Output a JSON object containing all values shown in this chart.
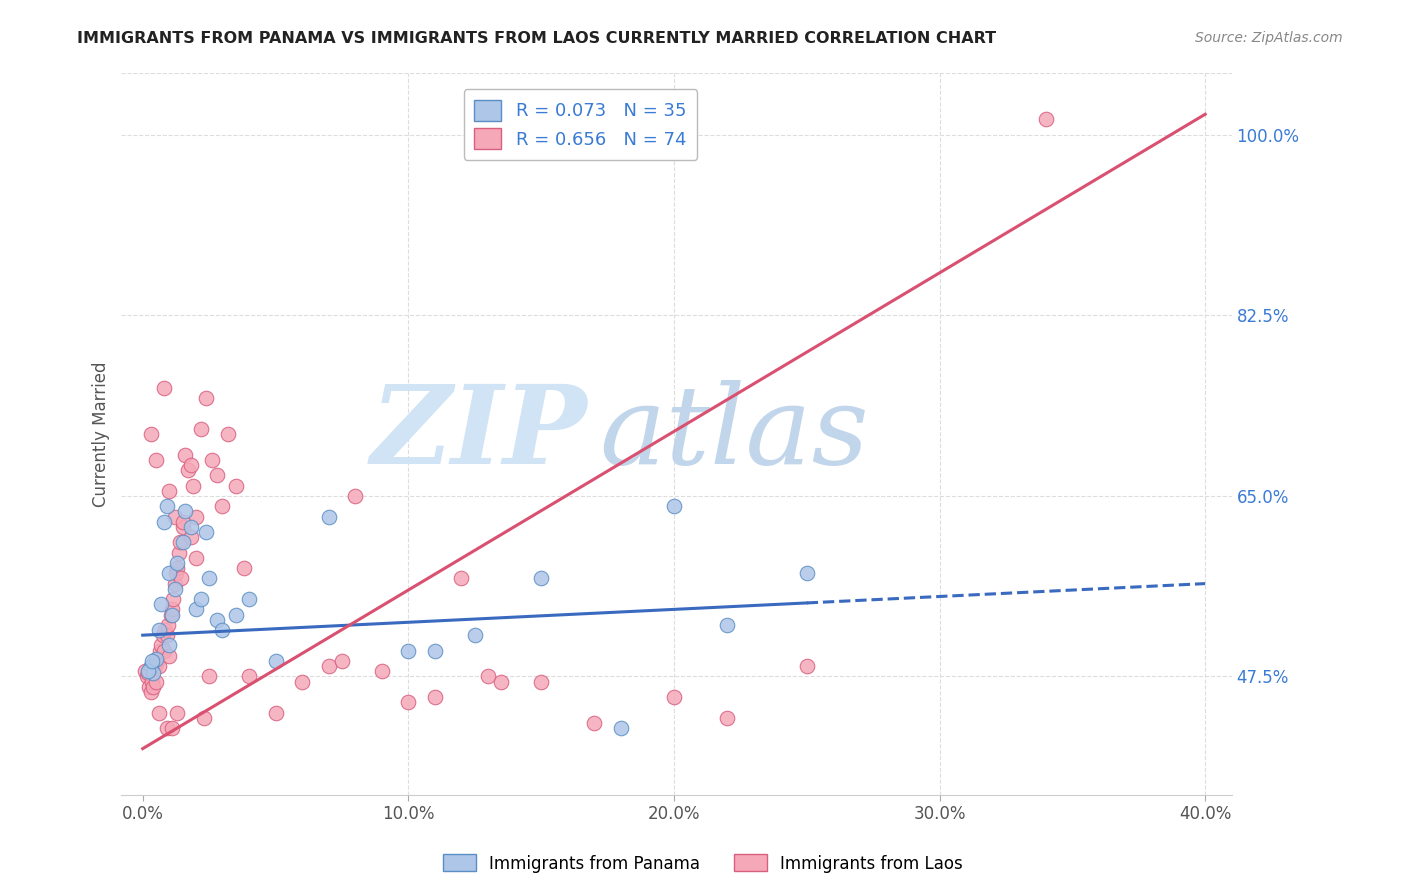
{
  "title": "IMMIGRANTS FROM PANAMA VS IMMIGRANTS FROM LAOS CURRENTLY MARRIED CORRELATION CHART",
  "source": "Source: ZipAtlas.com",
  "ylabel": "Currently Married",
  "x_tick_labels": [
    "0.0%",
    "10.0%",
    "20.0%",
    "30.0%",
    "40.0%"
  ],
  "x_tick_values": [
    0.0,
    10.0,
    20.0,
    30.0,
    40.0
  ],
  "y_tick_labels": [
    "47.5%",
    "65.0%",
    "82.5%",
    "100.0%"
  ],
  "y_tick_values": [
    47.5,
    65.0,
    82.5,
    100.0
  ],
  "xlim": [
    -0.8,
    41.0
  ],
  "ylim": [
    36.0,
    106.0
  ],
  "panama_color": "#aec6e8",
  "laos_color": "#f5a8b8",
  "panama_edge": "#5b8ec4",
  "laos_edge": "#d95f7f",
  "regression_blue": "#3a6abf",
  "regression_pink": "#d95070",
  "watermark_zip": "ZIP",
  "watermark_atlas": "atlas",
  "watermark_color": "#d0e4f5",
  "legend_r_panama": "R = 0.073",
  "legend_n_panama": "N = 35",
  "legend_r_laos": "R = 0.656",
  "legend_n_laos": "N = 74",
  "panama_regression_x0": 0.0,
  "panama_regression_y0": 51.5,
  "panama_regression_x1": 40.0,
  "panama_regression_y1": 56.5,
  "panama_solid_end": 25.0,
  "laos_regression_x0": 0.0,
  "laos_regression_y0": 40.5,
  "laos_regression_x1": 40.0,
  "laos_regression_y1": 102.0,
  "panama_x": [
    0.3,
    0.4,
    0.5,
    0.6,
    0.7,
    0.8,
    0.9,
    1.0,
    1.0,
    1.1,
    1.2,
    1.3,
    1.5,
    1.6,
    1.8,
    2.0,
    2.2,
    2.4,
    2.5,
    2.8,
    3.0,
    3.5,
    4.0,
    5.0,
    7.0,
    10.0,
    11.0,
    12.5,
    15.0,
    18.0,
    20.0,
    22.0,
    25.0,
    0.2,
    0.35
  ],
  "panama_y": [
    48.5,
    47.8,
    49.2,
    52.0,
    54.5,
    62.5,
    64.0,
    50.5,
    57.5,
    53.5,
    56.0,
    58.5,
    60.5,
    63.5,
    62.0,
    54.0,
    55.0,
    61.5,
    57.0,
    53.0,
    52.0,
    53.5,
    55.0,
    49.0,
    63.0,
    50.0,
    50.0,
    51.5,
    57.0,
    42.5,
    64.0,
    52.5,
    57.5,
    48.0,
    49.0
  ],
  "laos_x": [
    0.1,
    0.15,
    0.2,
    0.25,
    0.3,
    0.35,
    0.4,
    0.45,
    0.5,
    0.55,
    0.6,
    0.65,
    0.7,
    0.75,
    0.8,
    0.85,
    0.9,
    0.95,
    1.0,
    1.05,
    1.1,
    1.15,
    1.2,
    1.25,
    1.3,
    1.35,
    1.4,
    1.45,
    1.5,
    1.6,
    1.7,
    1.8,
    1.9,
    2.0,
    2.2,
    2.4,
    2.6,
    2.8,
    3.0,
    3.5,
    4.0,
    5.0,
    6.0,
    7.0,
    8.0,
    9.0,
    10.0,
    11.0,
    12.0,
    13.0,
    15.0,
    17.0,
    20.0,
    22.0,
    3.2,
    3.8,
    0.3,
    0.5,
    0.8,
    1.0,
    1.2,
    1.5,
    1.8,
    2.0,
    2.3,
    2.5,
    0.6,
    0.9,
    1.1,
    1.3,
    34.0,
    13.5,
    7.5,
    25.0
  ],
  "laos_y": [
    48.0,
    47.5,
    47.8,
    46.5,
    46.0,
    47.0,
    46.5,
    48.5,
    47.0,
    49.0,
    48.5,
    50.0,
    50.5,
    51.5,
    50.0,
    52.0,
    51.5,
    52.5,
    49.5,
    53.5,
    54.0,
    55.0,
    56.5,
    57.5,
    58.0,
    59.5,
    60.5,
    57.0,
    62.0,
    69.0,
    67.5,
    68.0,
    66.0,
    63.0,
    71.5,
    74.5,
    68.5,
    67.0,
    64.0,
    66.0,
    47.5,
    44.0,
    47.0,
    48.5,
    65.0,
    48.0,
    45.0,
    45.5,
    57.0,
    47.5,
    47.0,
    43.0,
    45.5,
    43.5,
    71.0,
    58.0,
    71.0,
    68.5,
    75.5,
    65.5,
    63.0,
    62.5,
    61.0,
    59.0,
    43.5,
    47.5,
    44.0,
    42.5,
    42.5,
    44.0,
    101.5,
    47.0,
    49.0,
    48.5
  ]
}
